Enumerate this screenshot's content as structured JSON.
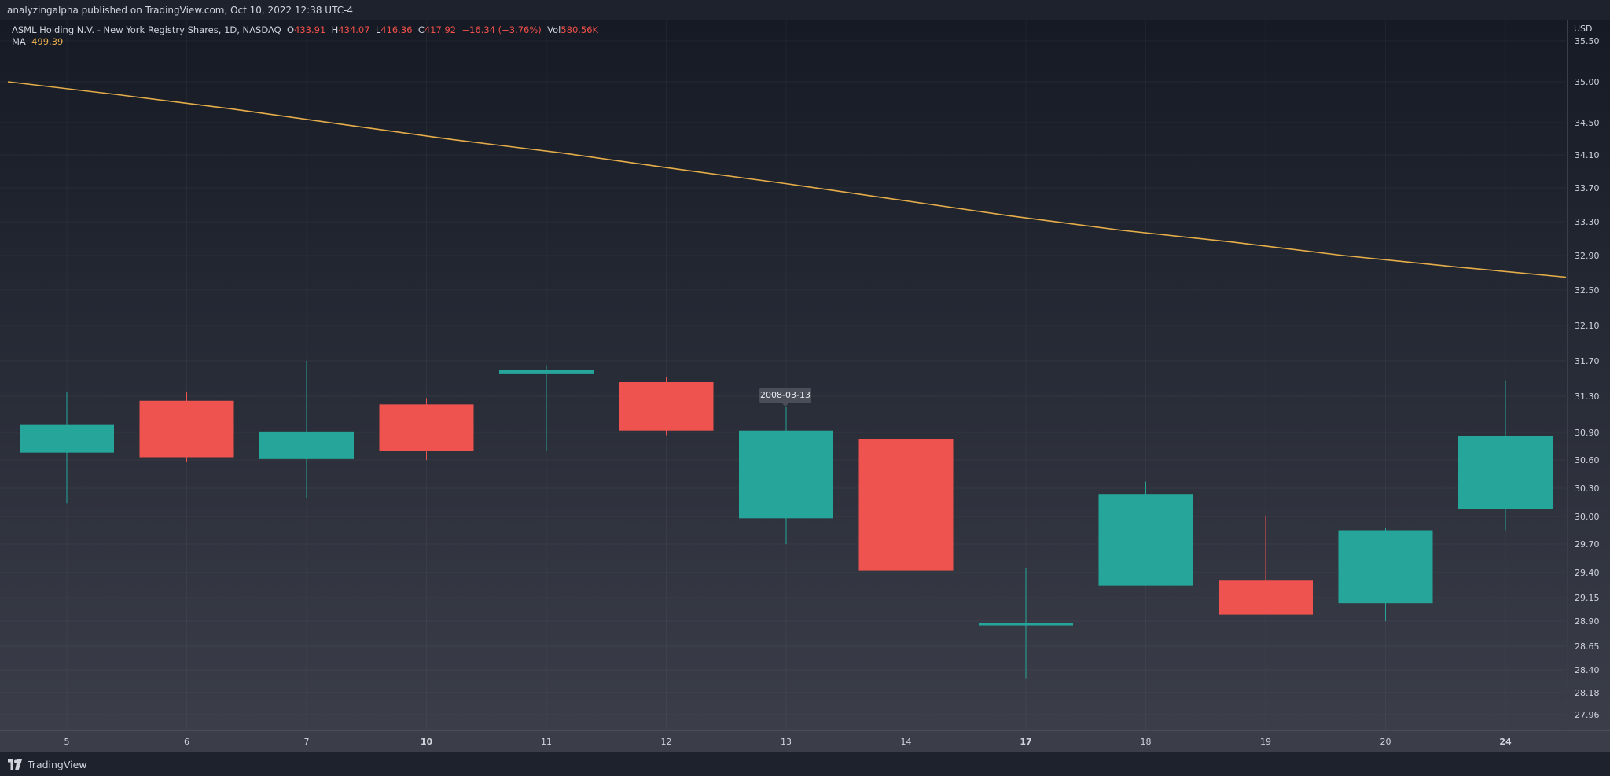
{
  "header": {
    "published_by": "analyzingalpha published on TradingView.com, Oct 10, 2022 12:38 UTC-4"
  },
  "legend": {
    "symbol": "ASML Holding N.V. - New York Registry Shares, 1D, NASDAQ",
    "open_label": "O",
    "open_value": "433.91",
    "high_label": "H",
    "high_value": "434.07",
    "low_label": "L",
    "low_value": "416.36",
    "close_label": "C",
    "close_value": "417.92",
    "change": "−16.34 (−3.76%)",
    "volume_label": "Vol",
    "volume_value": "580.56K",
    "ma_label": "MA",
    "ma_value": "499.39"
  },
  "tooltip": {
    "date": "2008-03-13"
  },
  "price_axis": {
    "currency": "USD"
  },
  "footer": {
    "brand": "TradingView"
  },
  "colors": {
    "up": "#26a69a",
    "down": "#ef5350",
    "ma_line": "#e5ad4a",
    "background": "#1e222d"
  },
  "chart_data": {
    "type": "candlestick",
    "x_tick_labels": [
      "5",
      "6",
      "7",
      "10",
      "11",
      "12",
      "13",
      "14",
      "17",
      "18",
      "19",
      "20",
      "24"
    ],
    "bold_ticks": [
      "10",
      "17",
      "24"
    ],
    "y_tick_labels": [
      "35.50",
      "35.00",
      "34.50",
      "34.10",
      "33.70",
      "33.30",
      "32.90",
      "32.50",
      "32.10",
      "31.70",
      "31.30",
      "30.90",
      "30.60",
      "30.30",
      "30.00",
      "29.70",
      "29.40",
      "29.15",
      "28.90",
      "28.65",
      "28.40",
      "28.18",
      "27.96"
    ],
    "candles": [
      {
        "label": "5",
        "open": 30.68,
        "high": 31.35,
        "low": 30.14,
        "close": 30.99
      },
      {
        "label": "6",
        "open": 31.25,
        "high": 31.35,
        "low": 30.58,
        "close": 30.63
      },
      {
        "label": "7",
        "open": 30.61,
        "high": 31.7,
        "low": 30.2,
        "close": 30.91
      },
      {
        "label": "10",
        "open": 31.21,
        "high": 31.28,
        "low": 30.6,
        "close": 30.7
      },
      {
        "label": "11",
        "open": 31.55,
        "high": 31.65,
        "low": 30.7,
        "close": 31.6
      },
      {
        "label": "12",
        "open": 31.46,
        "high": 31.52,
        "low": 30.87,
        "close": 30.92
      },
      {
        "label": "13",
        "open": 29.98,
        "high": 31.18,
        "low": 29.7,
        "close": 30.92
      },
      {
        "label": "14",
        "open": 30.83,
        "high": 30.9,
        "low": 29.09,
        "close": 29.42
      },
      {
        "label": "17",
        "open": 28.86,
        "high": 29.45,
        "low": 28.32,
        "close": 28.88
      },
      {
        "label": "18",
        "open": 29.27,
        "high": 30.37,
        "low": 29.27,
        "close": 30.24
      },
      {
        "label": "19",
        "open": 29.32,
        "high": 30.01,
        "low": 29.0,
        "close": 28.97
      },
      {
        "label": "20",
        "open": 29.09,
        "high": 29.88,
        "low": 28.9,
        "close": 29.85
      },
      {
        "label": "24",
        "open": 30.08,
        "high": 31.48,
        "low": 29.85,
        "close": 30.86
      }
    ],
    "ma_series": {
      "name": "MA",
      "values": [
        35.0,
        34.84,
        34.67,
        34.48,
        34.29,
        34.12,
        33.93,
        33.75,
        33.56,
        33.37,
        33.2,
        33.06,
        32.9,
        32.77,
        32.65
      ]
    },
    "grid": true
  }
}
